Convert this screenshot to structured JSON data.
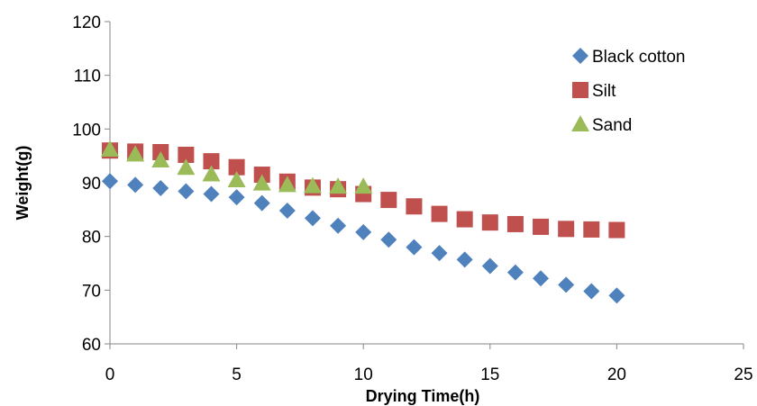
{
  "chart_data": {
    "type": "scatter",
    "title": "",
    "xlabel": "Drying Time(h)",
    "ylabel": "Weight(g)",
    "xlim": [
      0,
      25
    ],
    "ylim": [
      60,
      120
    ],
    "xticks": [
      0,
      5,
      10,
      15,
      20,
      25
    ],
    "yticks": [
      60,
      70,
      80,
      90,
      100,
      110,
      120
    ],
    "grid": false,
    "legend_position": "top-right",
    "series": [
      {
        "name": "Black cotton",
        "marker": "diamond",
        "color": "#4F81BD",
        "x": [
          0,
          1,
          2,
          3,
          4,
          5,
          6,
          7,
          8,
          9,
          10,
          11,
          12,
          13,
          14,
          15,
          16,
          17,
          18,
          19,
          20
        ],
        "y": [
          90.3,
          89.6,
          89.0,
          88.4,
          87.9,
          87.3,
          86.2,
          84.8,
          83.4,
          82.0,
          80.8,
          79.4,
          78.0,
          76.9,
          75.7,
          74.5,
          73.3,
          72.2,
          71.0,
          69.8,
          69.0
        ]
      },
      {
        "name": "Silt",
        "marker": "square",
        "color": "#C0504D",
        "x": [
          0,
          1,
          2,
          3,
          4,
          5,
          6,
          7,
          8,
          9,
          10,
          11,
          12,
          13,
          14,
          15,
          16,
          17,
          18,
          19,
          20
        ],
        "y": [
          96.0,
          95.8,
          95.7,
          95.2,
          94.0,
          92.9,
          91.5,
          90.2,
          89.1,
          88.8,
          87.9,
          86.8,
          85.6,
          84.2,
          83.2,
          82.6,
          82.3,
          81.8,
          81.4,
          81.3,
          81.2
        ]
      },
      {
        "name": "Sand",
        "marker": "triangle",
        "color": "#9BBB59",
        "x": [
          0,
          1,
          2,
          3,
          4,
          5,
          6,
          7,
          8,
          9,
          10
        ],
        "y": [
          96.2,
          95.3,
          94.2,
          92.8,
          91.6,
          90.5,
          89.9,
          89.6,
          89.4,
          89.3,
          89.3
        ]
      }
    ]
  }
}
